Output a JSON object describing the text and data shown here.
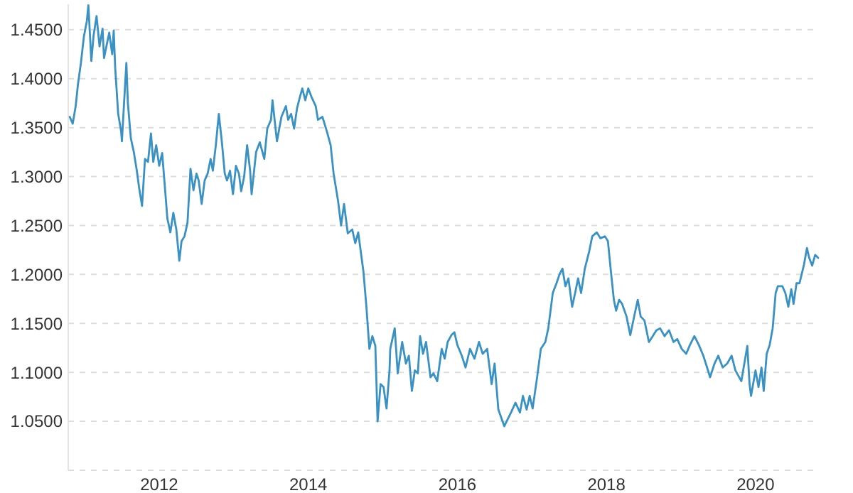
{
  "chart_data": {
    "type": "line",
    "xlim": [
      2010.78,
      2020.85
    ],
    "ylim": [
      1.0,
      1.476
    ],
    "xticks": [
      2012,
      2014,
      2016,
      2018,
      2020
    ],
    "yticks": [
      {
        "value": 1,
        "label": null
      },
      {
        "value": 1.05,
        "label": "1.0500"
      },
      {
        "value": 1.1,
        "label": "1.1000"
      },
      {
        "value": 1.15,
        "label": "1.1500"
      },
      {
        "value": 1.2,
        "label": "1.2000"
      },
      {
        "value": 1.25,
        "label": "1.2500"
      },
      {
        "value": 1.3,
        "label": "1.3000"
      },
      {
        "value": 1.35,
        "label": "1.3500"
      },
      {
        "value": 1.4,
        "label": "1.4000"
      },
      {
        "value": 1.45,
        "label": "1.4500"
      }
    ],
    "grid": "y",
    "marker": "none",
    "line_style": "solid",
    "series": [
      {
        "color": "#3a91c4",
        "x": [
          2010.8,
          2010.84,
          2010.88,
          2010.91,
          2010.95,
          2010.99,
          2011.03,
          2011.05,
          2011.09,
          2011.12,
          2011.16,
          2011.2,
          2011.24,
          2011.26,
          2011.3,
          2011.33,
          2011.37,
          2011.39,
          2011.41,
          2011.45,
          2011.49,
          2011.5,
          2011.54,
          2011.56,
          2011.58,
          2011.62,
          2011.66,
          2011.7,
          2011.73,
          2011.77,
          2011.81,
          2011.85,
          2011.89,
          2011.92,
          2011.96,
          2012.0,
          2012.04,
          2012.08,
          2012.11,
          2012.15,
          2012.19,
          2012.23,
          2012.27,
          2012.3,
          2012.34,
          2012.38,
          2012.42,
          2012.46,
          2012.5,
          2012.53,
          2012.57,
          2012.61,
          2012.65,
          2012.69,
          2012.72,
          2012.76,
          2012.8,
          2012.84,
          2012.88,
          2012.91,
          2012.95,
          2012.99,
          2013.03,
          2013.07,
          2013.1,
          2013.14,
          2013.18,
          2013.22,
          2013.24,
          2013.3,
          2013.35,
          2013.41,
          2013.45,
          2013.5,
          2013.52,
          2013.58,
          2013.64,
          2013.7,
          2013.73,
          2013.77,
          2013.81,
          2013.85,
          2013.89,
          2013.92,
          2013.96,
          2014.0,
          2014.04,
          2014.1,
          2014.13,
          2014.19,
          2014.25,
          2014.3,
          2014.34,
          2014.4,
          2014.44,
          2014.48,
          2014.53,
          2014.59,
          2014.63,
          2014.67,
          2014.74,
          2014.78,
          2014.82,
          2014.86,
          2014.9,
          2014.93,
          2014.97,
          2015.01,
          2015.05,
          2015.09,
          2015.1,
          2015.16,
          2015.2,
          2015.26,
          2015.31,
          2015.35,
          2015.39,
          2015.43,
          2015.47,
          2015.5,
          2015.54,
          2015.58,
          2015.64,
          2015.68,
          2015.73,
          2015.79,
          2015.83,
          2015.87,
          2015.92,
          2015.96,
          2016.0,
          2016.06,
          2016.11,
          2016.17,
          2016.23,
          2016.29,
          2016.34,
          2016.4,
          2016.46,
          2016.5,
          2016.55,
          2016.63,
          2016.72,
          2016.78,
          2016.84,
          2016.88,
          2016.93,
          2016.97,
          2017.01,
          2017.07,
          2017.12,
          2017.18,
          2017.22,
          2017.28,
          2017.33,
          2017.37,
          2017.41,
          2017.45,
          2017.49,
          2017.54,
          2017.58,
          2017.62,
          2017.66,
          2017.71,
          2017.77,
          2017.81,
          2017.87,
          2017.92,
          2017.98,
          2018.02,
          2018.06,
          2018.1,
          2018.13,
          2018.17,
          2018.21,
          2018.27,
          2018.32,
          2018.38,
          2018.42,
          2018.46,
          2018.51,
          2018.57,
          2018.63,
          2018.67,
          2018.72,
          2018.78,
          2018.84,
          2018.9,
          2018.95,
          2019.01,
          2019.07,
          2019.12,
          2019.18,
          2019.24,
          2019.3,
          2019.35,
          2019.39,
          2019.45,
          2019.5,
          2019.56,
          2019.62,
          2019.68,
          2019.73,
          2019.81,
          2019.85,
          2019.89,
          2019.92,
          2019.94,
          2020.0,
          2020.04,
          2020.08,
          2020.11,
          2020.15,
          2020.19,
          2020.23,
          2020.27,
          2020.3,
          2020.36,
          2020.4,
          2020.44,
          2020.48,
          2020.51,
          2020.55,
          2020.59,
          2020.65,
          2020.69,
          2020.72,
          2020.76,
          2020.8,
          2020.84
        ],
        "values": [
          1.361,
          1.354,
          1.372,
          1.394,
          1.416,
          1.443,
          1.459,
          1.475,
          1.418,
          1.444,
          1.464,
          1.433,
          1.451,
          1.421,
          1.436,
          1.447,
          1.425,
          1.449,
          1.411,
          1.364,
          1.346,
          1.336,
          1.39,
          1.416,
          1.375,
          1.339,
          1.325,
          1.306,
          1.289,
          1.27,
          1.318,
          1.315,
          1.344,
          1.315,
          1.332,
          1.311,
          1.324,
          1.286,
          1.257,
          1.243,
          1.263,
          1.246,
          1.214,
          1.234,
          1.239,
          1.253,
          1.308,
          1.286,
          1.303,
          1.296,
          1.272,
          1.296,
          1.303,
          1.318,
          1.306,
          1.332,
          1.364,
          1.336,
          1.303,
          1.296,
          1.306,
          1.282,
          1.311,
          1.303,
          1.285,
          1.3,
          1.332,
          1.306,
          1.282,
          1.325,
          1.335,
          1.318,
          1.349,
          1.358,
          1.378,
          1.336,
          1.361,
          1.372,
          1.358,
          1.364,
          1.349,
          1.37,
          1.382,
          1.39,
          1.378,
          1.39,
          1.382,
          1.372,
          1.358,
          1.361,
          1.346,
          1.332,
          1.303,
          1.275,
          1.25,
          1.272,
          1.242,
          1.246,
          1.232,
          1.243,
          1.203,
          1.167,
          1.124,
          1.137,
          1.127,
          1.05,
          1.088,
          1.085,
          1.063,
          1.102,
          1.124,
          1.145,
          1.099,
          1.131,
          1.109,
          1.117,
          1.081,
          1.102,
          1.099,
          1.137,
          1.119,
          1.131,
          1.095,
          1.099,
          1.091,
          1.124,
          1.114,
          1.131,
          1.138,
          1.141,
          1.128,
          1.117,
          1.105,
          1.124,
          1.114,
          1.131,
          1.119,
          1.124,
          1.088,
          1.109,
          1.062,
          1.045,
          1.059,
          1.069,
          1.059,
          1.076,
          1.062,
          1.076,
          1.063,
          1.095,
          1.124,
          1.131,
          1.145,
          1.181,
          1.191,
          1.2,
          1.206,
          1.188,
          1.196,
          1.167,
          1.181,
          1.196,
          1.181,
          1.206,
          1.224,
          1.239,
          1.243,
          1.237,
          1.239,
          1.234,
          1.203,
          1.174,
          1.163,
          1.174,
          1.17,
          1.157,
          1.138,
          1.16,
          1.174,
          1.157,
          1.153,
          1.131,
          1.138,
          1.143,
          1.145,
          1.137,
          1.143,
          1.131,
          1.134,
          1.124,
          1.119,
          1.128,
          1.137,
          1.128,
          1.117,
          1.105,
          1.095,
          1.109,
          1.117,
          1.105,
          1.109,
          1.117,
          1.102,
          1.091,
          1.109,
          1.127,
          1.088,
          1.076,
          1.102,
          1.085,
          1.105,
          1.081,
          1.119,
          1.128,
          1.145,
          1.181,
          1.188,
          1.188,
          1.181,
          1.167,
          1.185,
          1.17,
          1.191,
          1.191,
          1.21,
          1.227,
          1.217,
          1.209,
          1.22,
          1.217
        ]
      }
    ]
  }
}
